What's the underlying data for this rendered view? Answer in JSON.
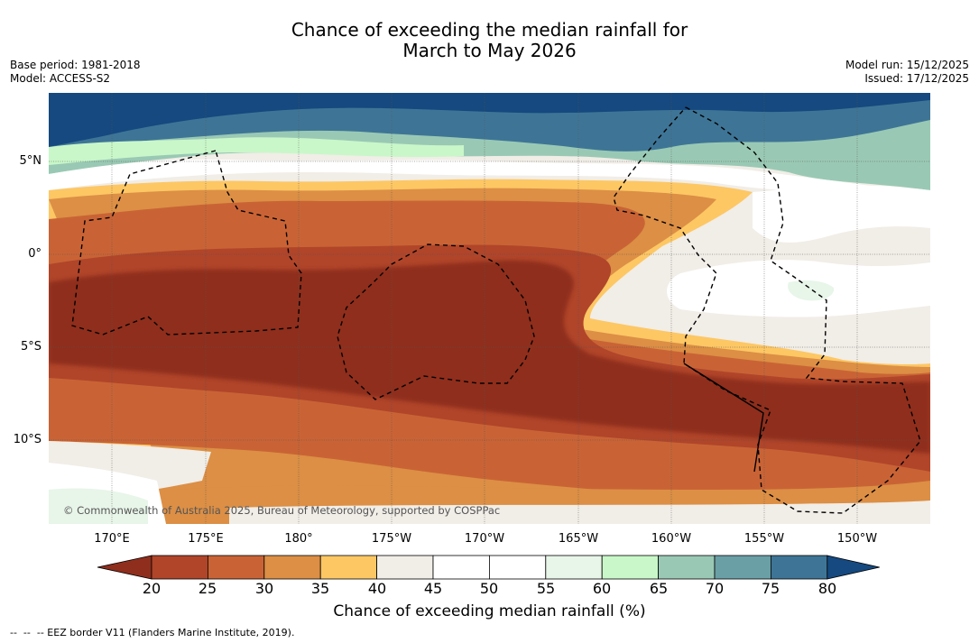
{
  "title": {
    "line1": "Chance of exceeding the median rainfall for",
    "line2": "March to May 2026"
  },
  "meta": {
    "base_period": "Base period: 1981-2018",
    "model": "Model: ACCESS-S2",
    "model_run": "Model run: 15/12/2025",
    "issued": "Issued: 17/12/2025"
  },
  "map": {
    "copyright": "© Commonwealth of Australia 2025, Bureau of Meteorology, supported by COSPPac",
    "lat_labels": [
      "5°N",
      "0°",
      "5°S",
      "10°S"
    ],
    "lon_labels": [
      "170°E",
      "175°E",
      "180°",
      "175°W",
      "170°W",
      "165°W",
      "160°W",
      "155°W",
      "150°W"
    ]
  },
  "colorbar": {
    "label": "Chance of exceeding median rainfall (%)",
    "ticks": [
      "20",
      "25",
      "30",
      "35",
      "40",
      "45",
      "50",
      "55",
      "60",
      "65",
      "70",
      "75",
      "80"
    ],
    "colors": [
      "#8f2e1d",
      "#b0452a",
      "#c96335",
      "#dc8f45",
      "#fdc764",
      "#f1ede7",
      "#ffffff",
      "#ffffff",
      "#e8f5e9",
      "#c9f7c9",
      "#99c9b4",
      "#6a9fa6",
      "#3e7596",
      "#15497f"
    ]
  },
  "footer": {
    "legend": "--  --  -- EEZ border V11 (Flanders Marine Institute, 2019)."
  }
}
